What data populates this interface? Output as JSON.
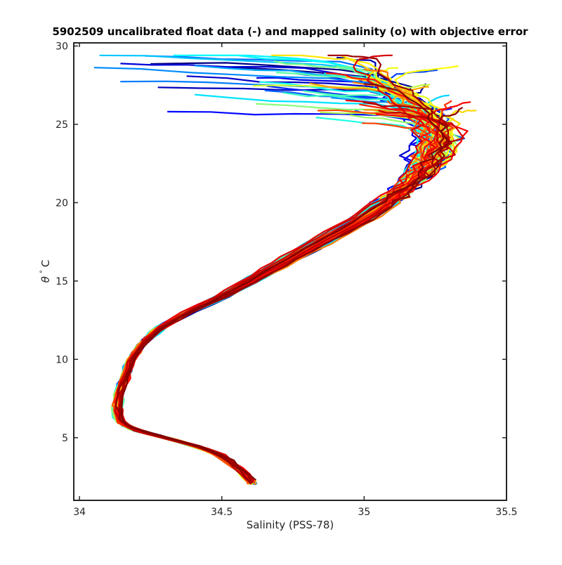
{
  "chart_data": {
    "type": "line",
    "title": "5902509 uncalibrated float data (-) and mapped salinity (o) with objective error",
    "xlabel": "Salinity (PSS-78)",
    "ylabel_symbol": "θ",
    "ylabel_degree": "°",
    "ylabel_unit": "C",
    "xlim": [
      33.98,
      35.5
    ],
    "ylim": [
      1,
      30.2
    ],
    "x_ticks": [
      34,
      34.5,
      35,
      35.5
    ],
    "x_tick_labels": [
      "34",
      "34.5",
      "35",
      "35.5"
    ],
    "y_ticks": [
      5,
      10,
      15,
      20,
      25,
      30
    ],
    "y_tick_labels": [
      "5",
      "10",
      "15",
      "20",
      "25",
      "30"
    ],
    "grid": false,
    "colormap": "jet",
    "series_color_order": "blue (earliest profiles) to dark red (latest profiles)",
    "colors": [
      "#00008f",
      "#0000ff",
      "#0080ff",
      "#00ffff",
      "#80ff80",
      "#ffff00",
      "#ff8000",
      "#ff0000",
      "#800000"
    ],
    "profile_count": 70,
    "mean_profile": {
      "theta": [
        2.0,
        3.0,
        4.0,
        4.5,
        5.0,
        5.5,
        6.0,
        7.0,
        8.0,
        9.0,
        10.0,
        11.0,
        12.0,
        13.0,
        14.0,
        15.0,
        16.0,
        17.0,
        18.0,
        19.0,
        20.0,
        21.0,
        22.0,
        23.0,
        24.0,
        25.0,
        26.0,
        27.0,
        28.0,
        29.0
      ],
      "salinity": [
        34.61,
        34.56,
        34.48,
        34.4,
        34.3,
        34.19,
        34.14,
        34.13,
        34.14,
        34.16,
        34.18,
        34.22,
        34.28,
        34.38,
        34.5,
        34.6,
        34.7,
        34.8,
        34.9,
        35.0,
        35.08,
        35.15,
        35.2,
        35.24,
        35.26,
        35.25,
        35.2,
        35.13,
        35.05,
        35.0
      ]
    }
  }
}
